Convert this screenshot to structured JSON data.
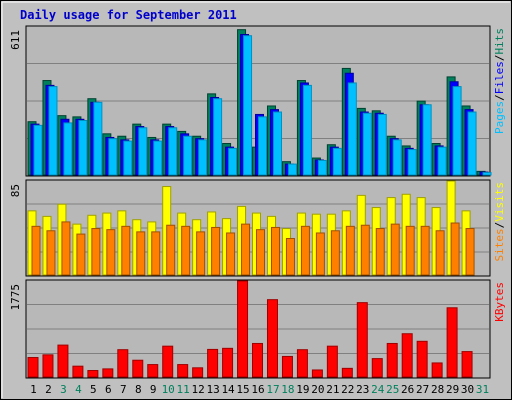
{
  "title": "Daily usage for September 2011",
  "colors": {
    "background": "#c0c0c0",
    "plot_background": "#b0b0b0",
    "title": "#0000cc",
    "hits": "#00805c",
    "files": "#0000ff",
    "pages": "#00c0ff",
    "visits": "#ffff00",
    "sites": "#ff8000",
    "kbytes": "#ff0000",
    "weekend_label": "#00805c"
  },
  "chart_data": [
    {
      "type": "bar",
      "panel": "traffic",
      "ymax_label": "611",
      "ymax": 611,
      "legend": [
        {
          "key": "pages",
          "label": "Pages"
        },
        {
          "key": "files",
          "label": "Files"
        },
        {
          "key": "hits",
          "label": "Hits"
        }
      ],
      "series": [
        {
          "name": "Hits",
          "key": "hits",
          "values": [
            220,
            390,
            245,
            240,
            315,
            170,
            160,
            210,
            155,
            210,
            180,
            160,
            335,
            130,
            600,
            115,
            285,
            55,
            390,
            70,
            125,
            440,
            275,
            265,
            160,
            120,
            305,
            130,
            405,
            285,
            15
          ]
        },
        {
          "name": "Files",
          "key": "files",
          "values": [
            210,
            370,
            230,
            230,
            300,
            155,
            145,
            200,
            145,
            200,
            170,
            150,
            320,
            115,
            580,
            250,
            270,
            45,
            380,
            62,
            115,
            420,
            260,
            255,
            150,
            110,
            290,
            120,
            385,
            270,
            12
          ]
        },
        {
          "name": "Pages",
          "key": "pages",
          "values": [
            205,
            365,
            215,
            225,
            300,
            150,
            140,
            195,
            140,
            195,
            160,
            145,
            315,
            110,
            575,
            240,
            260,
            45,
            370,
            60,
            110,
            380,
            255,
            250,
            145,
            105,
            290,
            115,
            365,
            260,
            10
          ]
        }
      ]
    },
    {
      "type": "bar",
      "panel": "visits",
      "ymax_label": "85",
      "ymax": 85,
      "legend": [
        {
          "key": "sites",
          "label": "Sites"
        },
        {
          "key": "visits",
          "label": "Visits"
        }
      ],
      "series": [
        {
          "name": "Visits",
          "key": "visits",
          "values": [
            58,
            53,
            64,
            46,
            54,
            56,
            58,
            50,
            48,
            80,
            56,
            50,
            57,
            51,
            62,
            56,
            53,
            42,
            56,
            55,
            55,
            58,
            72,
            61,
            70,
            73,
            70,
            61,
            85,
            58,
            0
          ]
        },
        {
          "name": "Sites",
          "key": "sites",
          "values": [
            44,
            40,
            48,
            37,
            42,
            41,
            44,
            39,
            39,
            45,
            44,
            39,
            43,
            38,
            46,
            41,
            43,
            33,
            44,
            38,
            40,
            44,
            45,
            42,
            46,
            44,
            44,
            40,
            47,
            42,
            0
          ]
        }
      ]
    },
    {
      "type": "bar",
      "panel": "kbytes",
      "ymax_label": "1775",
      "ymax": 1775,
      "legend": [
        {
          "key": "kbytes",
          "label": "KBytes"
        }
      ],
      "series": [
        {
          "name": "KBytes",
          "key": "kbytes",
          "values": [
            360,
            410,
            590,
            200,
            120,
            150,
            505,
            310,
            230,
            570,
            230,
            170,
            510,
            530,
            1775,
            620,
            1430,
            380,
            505,
            130,
            570,
            160,
            1375,
            340,
            620,
            800,
            660,
            260,
            1280,
            470,
            0
          ]
        }
      ]
    }
  ],
  "x_labels": [
    {
      "day": "1",
      "weekend": false
    },
    {
      "day": "2",
      "weekend": false
    },
    {
      "day": "3",
      "weekend": true
    },
    {
      "day": "4",
      "weekend": true
    },
    {
      "day": "5",
      "weekend": false
    },
    {
      "day": "6",
      "weekend": false
    },
    {
      "day": "7",
      "weekend": false
    },
    {
      "day": "8",
      "weekend": false
    },
    {
      "day": "9",
      "weekend": false
    },
    {
      "day": "10",
      "weekend": true
    },
    {
      "day": "11",
      "weekend": true
    },
    {
      "day": "12",
      "weekend": false
    },
    {
      "day": "13",
      "weekend": false
    },
    {
      "day": "14",
      "weekend": false
    },
    {
      "day": "15",
      "weekend": false
    },
    {
      "day": "16",
      "weekend": false
    },
    {
      "day": "17",
      "weekend": true
    },
    {
      "day": "18",
      "weekend": true
    },
    {
      "day": "19",
      "weekend": false
    },
    {
      "day": "20",
      "weekend": false
    },
    {
      "day": "21",
      "weekend": false
    },
    {
      "day": "22",
      "weekend": false
    },
    {
      "day": "23",
      "weekend": false
    },
    {
      "day": "24",
      "weekend": true
    },
    {
      "day": "25",
      "weekend": true
    },
    {
      "day": "26",
      "weekend": false
    },
    {
      "day": "27",
      "weekend": false
    },
    {
      "day": "28",
      "weekend": false
    },
    {
      "day": "29",
      "weekend": false
    },
    {
      "day": "30",
      "weekend": false
    },
    {
      "day": "31",
      "weekend": true
    }
  ]
}
